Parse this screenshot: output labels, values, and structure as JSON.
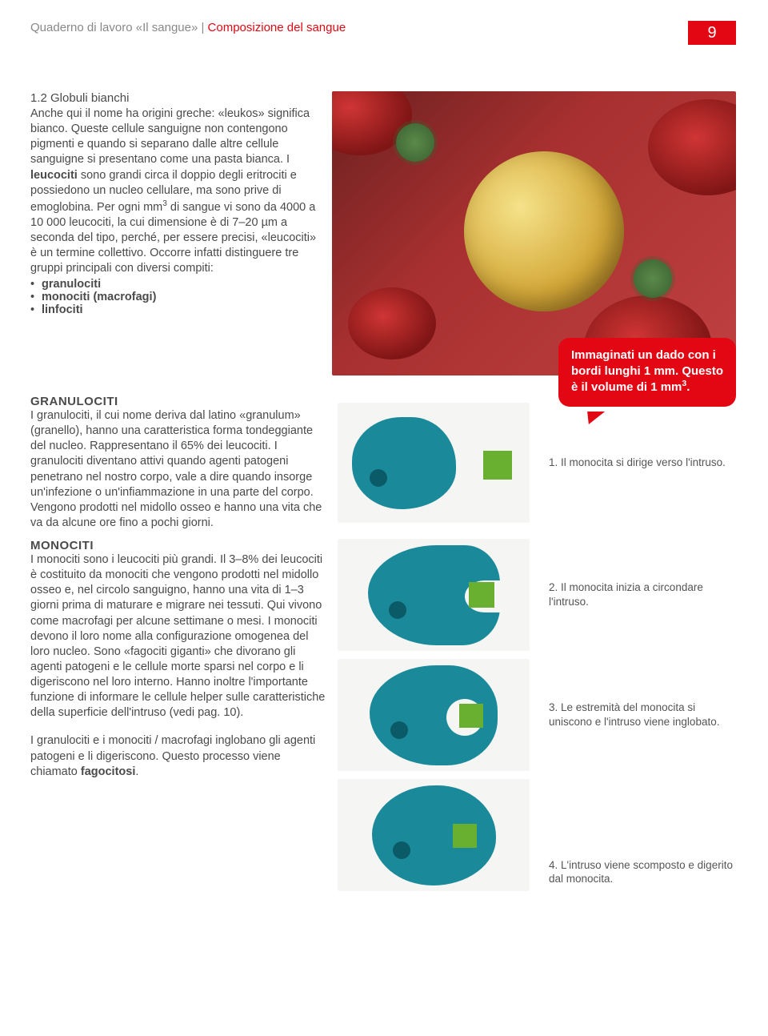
{
  "header": {
    "workbook": "Quaderno di lavoro «Il sangue»",
    "separator": " | ",
    "section": "Composizione del sangue",
    "page_number": "9"
  },
  "intro": {
    "title": "1.2 Globuli bianchi",
    "paragraph_html": "Anche qui il nome ha origini greche: «leukos» significa bianco. Queste cellule sanguigne non contengono pigmenti e quando si separano dalle altre cellule sanguigne si presentano come una pasta bianca. I <b>leucociti</b> sono grandi circa il doppio degli eritrociti e possiedono un nucleo cellulare, ma sono prive di emoglobina. Per ogni mm<sup>3</sup> di sangue vi sono da 4000 a 10 000 leucociti, la cui dimensione è di 7–20 µm a seconda del tipo, perché, per essere precisi, «leucociti» è un termine collettivo. Occorre infatti distinguere tre gruppi principali con diversi compiti:",
    "bullets": [
      "granulociti",
      "monociti (macrofagi)",
      "linfociti"
    ]
  },
  "callout": {
    "text_html": "Immaginati un dado con i bordi lunghi 1 mm. Questo è il volume di 1 mm<sup>3</sup>."
  },
  "granulociti": {
    "heading": "GRANULOCITI",
    "text": "I granulociti, il cui nome deriva dal latino «granulum» (granello), hanno una caratteristica forma tondeggiante del nucleo. Rappresentano il 65% dei leucociti. I granulociti diventano attivi quando agenti patogeni penetrano nel nostro corpo, vale a dire quando insorge un'infezione o un'infiammazione in una parte del corpo. Vengono prodotti nel midollo osseo e hanno una vita che va da alcune ore fino a pochi giorni.",
    "caption": "1. Il monocita si dirige verso l'intruso."
  },
  "monociti": {
    "heading": "MONOCITI",
    "text_p1": "I monociti sono i leucociti più grandi. Il 3–8% dei leucociti è costituito da monociti che vengono prodotti nel midollo osseo e, nel circolo sanguigno, hanno una vita di 1–3 giorni prima di maturare e migrare nei tessuti. Qui vivono come macrofagi per alcune settimane o mesi. I monociti devono il loro nome alla configurazione omogenea del loro nucleo. Sono «fagociti giganti» che divorano gli agenti patogeni e le cellule morte sparsi nel corpo e li digeriscono nel loro interno. Hanno inoltre l'importante funzione di informare le cellule helper sulle caratteristiche della superficie dell'intruso (vedi pag. 10).",
    "caption2": "2. Il monocita inizia a circondare l'intruso.",
    "caption3": "3. Le estremità del monocita si uniscono e l'intruso viene inglobato.",
    "text_p2_html": "I granulociti e i monociti / macrofagi inglobano gli agenti patogeni e li digeriscono. Questo processo viene chiamato <b>fagocitosi</b>.",
    "caption4": "4. L'intruso viene scomposto e digerito dal monocita."
  },
  "colors": {
    "accent": "#e30613",
    "mono_fill": "#1a8a9a",
    "mono_nucleus": "#0a5a68",
    "pathogen": "#6ab030",
    "diagram_bg": "#f5f5f3",
    "text": "#4a4a4a"
  }
}
